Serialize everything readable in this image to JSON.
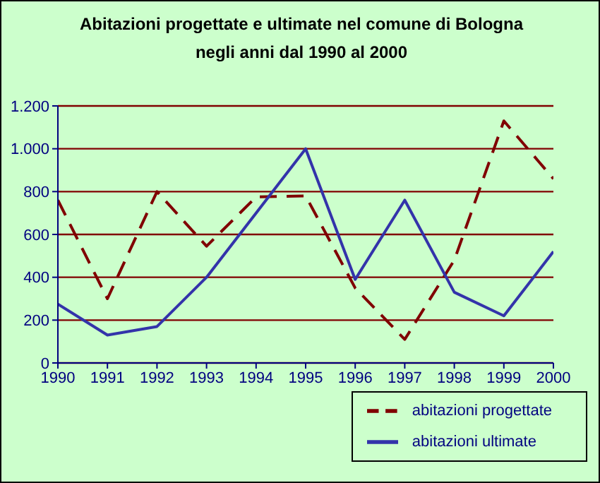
{
  "chart_data": {
    "type": "line",
    "title": "Abitazioni progettate e ultimate nel comune di Bologna\nnegli anni dal 1990 al 2000",
    "categories": [
      "1990",
      "1991",
      "1992",
      "1993",
      "1994",
      "1995",
      "1996",
      "1997",
      "1998",
      "1999",
      "2000"
    ],
    "series": [
      {
        "name": "abitazioni progettate",
        "color": "#800000",
        "line_style": "dashed",
        "values": [
          760,
          300,
          800,
          545,
          775,
          780,
          350,
          110,
          480,
          1130,
          860
        ]
      },
      {
        "name": "abitazioni ultimate",
        "color": "#3333aa",
        "line_style": "solid",
        "values": [
          275,
          130,
          170,
          400,
          700,
          1000,
          390,
          760,
          330,
          220,
          520
        ]
      }
    ],
    "ylim": [
      0,
      1200
    ],
    "yticks": [
      0,
      200,
      400,
      600,
      800,
      {
        "value": 1000,
        "label": "1.000"
      },
      {
        "value": 1200,
        "label": "1.200"
      }
    ],
    "grid": "y",
    "legend": "bottom right",
    "marker": "none"
  }
}
